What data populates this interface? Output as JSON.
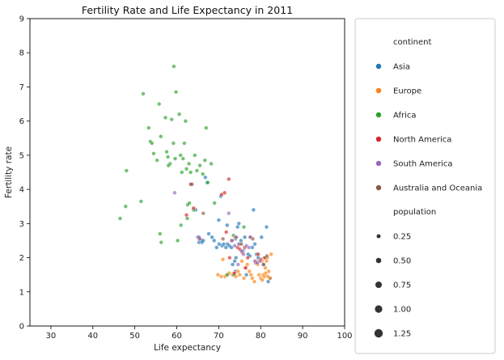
{
  "chart_data": {
    "type": "scatter",
    "title": "Fertility Rate and Life Expectancy in 2011",
    "xlabel": "Life expectancy",
    "ylabel": "Fertility rate",
    "xlim": [
      25,
      100
    ],
    "ylim": [
      0,
      9
    ],
    "xticks": [
      "30",
      "40",
      "50",
      "60",
      "70",
      "80",
      "90",
      "100"
    ],
    "yticks": [
      "0",
      "1",
      "2",
      "3",
      "4",
      "5",
      "6",
      "7",
      "8",
      "9"
    ],
    "grid": false,
    "legend_position": "right, outside plot",
    "legend": {
      "hue_title": "continent",
      "size_title": "population",
      "size_labels": [
        "0.25",
        "0.50",
        "0.75",
        "1.00",
        "1.25"
      ]
    },
    "series": [
      {
        "name": "Asia",
        "color": "#1f77b4",
        "points": [
          [
            65.0,
            2.6
          ],
          [
            65.3,
            2.45
          ],
          [
            65.8,
            2.5
          ],
          [
            65.6,
            2.55
          ],
          [
            66.0,
            2.45
          ],
          [
            66.3,
            2.5
          ],
          [
            66.8,
            4.35
          ],
          [
            67.2,
            4.2
          ],
          [
            67.6,
            2.7
          ],
          [
            68.4,
            2.6
          ],
          [
            68.9,
            2.5
          ],
          [
            69.5,
            2.3
          ],
          [
            70.1,
            2.4
          ],
          [
            70.5,
            3.8
          ],
          [
            70.8,
            2.35
          ],
          [
            71.2,
            2.4
          ],
          [
            71.7,
            2.3
          ],
          [
            72.1,
            2.4
          ],
          [
            72.5,
            2.35
          ],
          [
            73.0,
            2.3
          ],
          [
            73.3,
            1.8
          ],
          [
            73.8,
            1.9
          ],
          [
            74.1,
            2.0
          ],
          [
            74.5,
            2.9
          ],
          [
            74.8,
            3.0
          ],
          [
            75.3,
            2.5
          ],
          [
            75.8,
            2.2
          ],
          [
            76.2,
            2.6
          ],
          [
            76.6,
            1.5
          ],
          [
            77.0,
            2.1
          ],
          [
            77.4,
            2.05
          ],
          [
            78.0,
            2.3
          ],
          [
            78.3,
            3.4
          ],
          [
            78.6,
            2.4
          ],
          [
            79.0,
            2.1
          ],
          [
            79.4,
            2.0
          ],
          [
            80.2,
            2.6
          ],
          [
            80.6,
            1.8
          ],
          [
            81.0,
            2.0
          ],
          [
            81.4,
            2.9
          ],
          [
            81.8,
            1.3
          ],
          [
            82.3,
            1.4
          ],
          [
            64.5,
            3.4
          ],
          [
            70.0,
            3.1
          ],
          [
            72.0,
            2.95
          ],
          [
            74.0,
            1.6
          ]
        ]
      },
      {
        "name": "Europe",
        "color": "#ff7f0e",
        "points": [
          [
            69.8,
            1.5
          ],
          [
            70.6,
            1.45
          ],
          [
            71.0,
            1.95
          ],
          [
            71.5,
            1.45
          ],
          [
            72.0,
            1.5
          ],
          [
            72.5,
            1.55
          ],
          [
            73.3,
            1.5
          ],
          [
            73.8,
            1.55
          ],
          [
            74.1,
            1.45
          ],
          [
            74.6,
            1.6
          ],
          [
            75.0,
            1.5
          ],
          [
            75.5,
            1.9
          ],
          [
            76.0,
            1.4
          ],
          [
            76.4,
            1.7
          ],
          [
            76.8,
            1.8
          ],
          [
            77.3,
            1.6
          ],
          [
            77.7,
            1.5
          ],
          [
            78.0,
            1.4
          ],
          [
            78.5,
            1.3
          ],
          [
            79.0,
            1.9
          ],
          [
            79.3,
            1.8
          ],
          [
            79.6,
            1.5
          ],
          [
            80.0,
            1.4
          ],
          [
            80.3,
            1.9
          ],
          [
            80.6,
            1.5
          ],
          [
            80.9,
            1.45
          ],
          [
            81.1,
            1.7
          ],
          [
            81.4,
            1.9
          ],
          [
            81.6,
            2.0
          ],
          [
            81.9,
            1.6
          ],
          [
            82.2,
            1.4
          ],
          [
            82.5,
            2.1
          ],
          [
            80.8,
            2.0
          ],
          [
            81.2,
            1.55
          ],
          [
            80.4,
            1.35
          ],
          [
            81.7,
            1.45
          ]
        ]
      },
      {
        "name": "Africa",
        "color": "#2ca02c",
        "points": [
          [
            46.5,
            3.15
          ],
          [
            47.8,
            3.5
          ],
          [
            48.0,
            4.55
          ],
          [
            51.5,
            3.65
          ],
          [
            52.0,
            6.8
          ],
          [
            53.3,
            5.8
          ],
          [
            53.7,
            5.4
          ],
          [
            54.1,
            5.35
          ],
          [
            54.5,
            5.05
          ],
          [
            55.3,
            4.85
          ],
          [
            55.8,
            6.5
          ],
          [
            56.2,
            5.55
          ],
          [
            56.0,
            2.7
          ],
          [
            56.3,
            2.45
          ],
          [
            57.3,
            6.1
          ],
          [
            57.6,
            5.1
          ],
          [
            57.9,
            4.95
          ],
          [
            58.4,
            4.75
          ],
          [
            58.8,
            6.05
          ],
          [
            59.2,
            5.35
          ],
          [
            59.3,
            7.6
          ],
          [
            59.6,
            4.9
          ],
          [
            59.8,
            6.85
          ],
          [
            60.2,
            2.5
          ],
          [
            60.6,
            6.2
          ],
          [
            60.9,
            5.0
          ],
          [
            61.2,
            4.5
          ],
          [
            61.5,
            4.9
          ],
          [
            61.8,
            5.35
          ],
          [
            62.1,
            6.0
          ],
          [
            62.3,
            4.6
          ],
          [
            62.6,
            3.55
          ],
          [
            62.9,
            4.75
          ],
          [
            63.3,
            4.5
          ],
          [
            63.6,
            4.15
          ],
          [
            64.0,
            3.4
          ],
          [
            64.3,
            5.0
          ],
          [
            64.8,
            4.55
          ],
          [
            65.5,
            4.7
          ],
          [
            66.2,
            4.45
          ],
          [
            66.7,
            4.85
          ],
          [
            67.0,
            5.8
          ],
          [
            67.4,
            4.2
          ],
          [
            68.2,
            4.75
          ],
          [
            62.5,
            3.15
          ],
          [
            61.0,
            2.95
          ],
          [
            73.5,
            2.65
          ],
          [
            74.0,
            2.55
          ],
          [
            75.0,
            2.4
          ],
          [
            76.0,
            2.9
          ],
          [
            72.0,
            1.5
          ],
          [
            73.6,
            1.5
          ],
          [
            69.0,
            3.6
          ],
          [
            63.0,
            3.6
          ],
          [
            58.0,
            4.7
          ]
        ]
      },
      {
        "name": "North America",
        "color": "#d62728",
        "points": [
          [
            62.3,
            3.25
          ],
          [
            63.6,
            4.15
          ],
          [
            64.0,
            3.45
          ],
          [
            65.4,
            2.55
          ],
          [
            70.7,
            3.85
          ],
          [
            71.4,
            3.9
          ],
          [
            71.8,
            2.75
          ],
          [
            72.4,
            4.3
          ],
          [
            73.0,
            2.5
          ],
          [
            74.0,
            2.6
          ],
          [
            74.5,
            2.3
          ],
          [
            75.0,
            2.25
          ],
          [
            75.6,
            2.15
          ],
          [
            76.2,
            2.3
          ],
          [
            76.9,
            2.0
          ],
          [
            77.6,
            2.6
          ],
          [
            78.8,
            1.85
          ],
          [
            79.4,
            2.1
          ],
          [
            80.0,
            1.95
          ],
          [
            73.7,
            1.55
          ],
          [
            76.4,
            1.7
          ],
          [
            72.6,
            2.0
          ]
        ]
      },
      {
        "name": "South America",
        "color": "#9467bd",
        "points": [
          [
            59.5,
            3.9
          ],
          [
            65.3,
            2.6
          ],
          [
            72.4,
            3.3
          ],
          [
            73.2,
            2.5
          ],
          [
            73.8,
            2.35
          ],
          [
            74.2,
            2.6
          ],
          [
            74.8,
            2.4
          ],
          [
            75.4,
            2.2
          ],
          [
            75.9,
            2.1
          ],
          [
            76.6,
            2.35
          ],
          [
            77.2,
            2.3
          ],
          [
            77.5,
            2.6
          ],
          [
            78.6,
            1.9
          ],
          [
            79.2,
            1.85
          ],
          [
            79.8,
            1.9
          ],
          [
            74.6,
            1.8
          ]
        ]
      },
      {
        "name": "Australia and Oceania",
        "color": "#8c564b",
        "points": [
          [
            63.3,
            4.15
          ],
          [
            66.3,
            3.3
          ],
          [
            71.0,
            2.55
          ],
          [
            75.4,
            2.4
          ],
          [
            78.1,
            2.55
          ],
          [
            81.0,
            2.0
          ],
          [
            81.5,
            2.05
          ],
          [
            80.7,
            1.8
          ]
        ]
      }
    ]
  }
}
